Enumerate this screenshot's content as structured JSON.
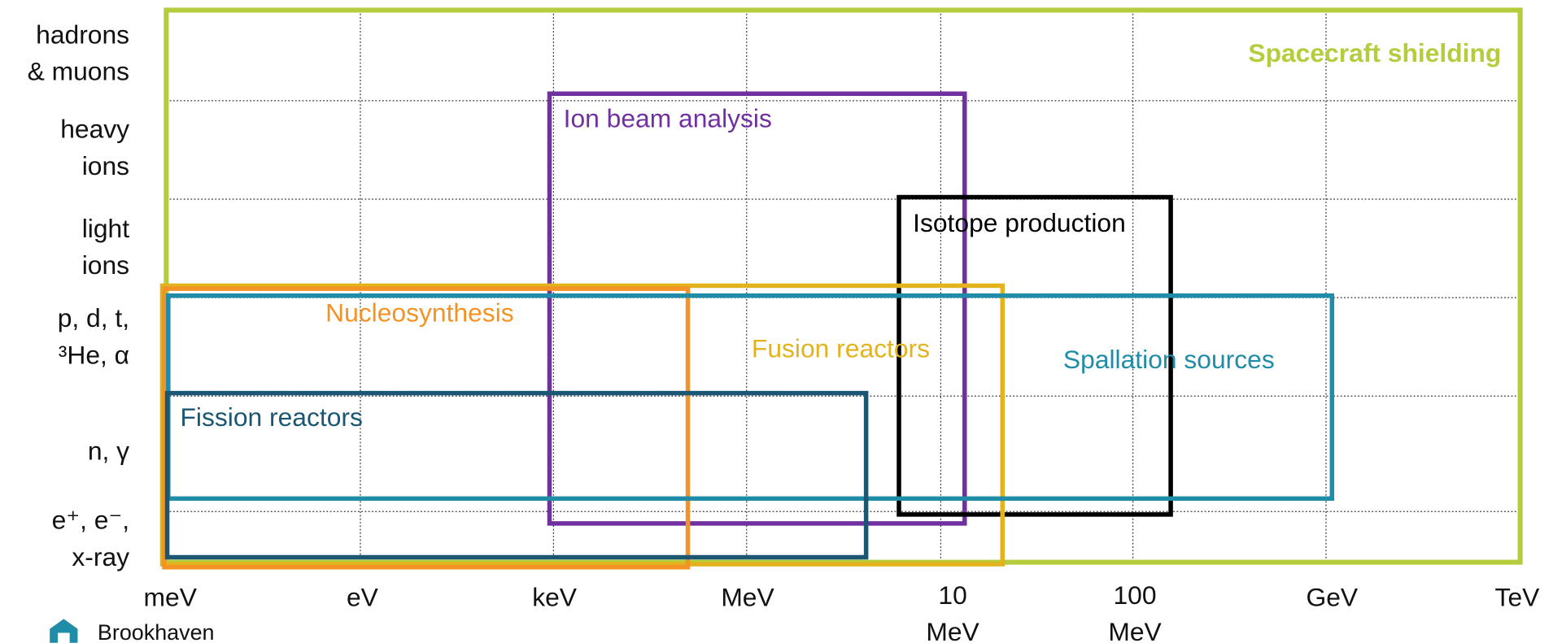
{
  "y_labels": [
    [
      "hadrons",
      "& muons"
    ],
    [
      "heavy",
      "ions"
    ],
    [
      "light",
      "ions"
    ],
    [
      "p, d, t,",
      "³He, α"
    ],
    [
      "n, γ"
    ],
    [
      "e⁺, e⁻,",
      "x-ray"
    ]
  ],
  "x_labels": [
    [
      "meV"
    ],
    [
      "eV"
    ],
    [
      "keV"
    ],
    [
      "MeV"
    ],
    [
      "10",
      "MeV"
    ],
    [
      "100",
      "MeV"
    ],
    [
      "GeV"
    ],
    [
      "TeV"
    ]
  ],
  "boxes": [
    {
      "label": "Spacecraft shielding",
      "color": "#b5cc3c"
    },
    {
      "label": "Ion beam analysis",
      "color": "#7030a0"
    },
    {
      "label": "Isotope production",
      "color": "#000000"
    },
    {
      "label": "Fusion reactors",
      "color": "#e3b31e"
    },
    {
      "label": "Nucleosynthesis",
      "color": "#f39325"
    },
    {
      "label": "Spallation sources",
      "color": "#1f8ca8"
    },
    {
      "label": "Fission reactors",
      "color": "#1b5672"
    }
  ],
  "logo": {
    "text": "Brookhaven"
  }
}
